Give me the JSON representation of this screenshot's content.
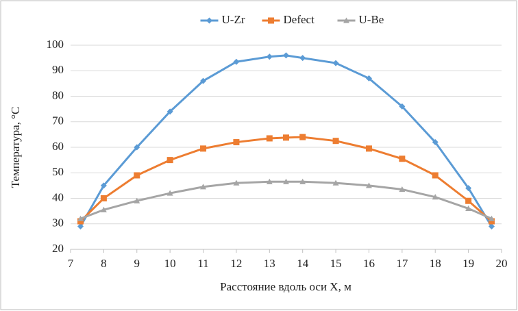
{
  "chart_data": {
    "type": "line",
    "x_label": "Расстояние вдоль оси X, м",
    "y_label": "Температура, °С",
    "x": [
      7.3,
      8,
      9,
      10,
      11,
      12,
      13,
      13.5,
      14,
      15,
      16,
      17,
      18,
      19,
      19.7
    ],
    "series": [
      {
        "name": "U-Zr",
        "color": "#5b9bd5",
        "marker": "diamond",
        "values": [
          29,
          45,
          60,
          74,
          86,
          93.5,
          95.5,
          96,
          95,
          93,
          87,
          76,
          62,
          44,
          29
        ]
      },
      {
        "name": "Defect",
        "color": "#ed7d31",
        "marker": "square",
        "values": [
          31,
          40,
          49,
          55,
          59.5,
          62,
          63.5,
          63.8,
          64,
          62.5,
          59.5,
          55.5,
          49,
          39,
          31
        ]
      },
      {
        "name": "U-Be",
        "color": "#a5a5a5",
        "marker": "triangle",
        "values": [
          32,
          35.5,
          39,
          42,
          44.5,
          46,
          46.5,
          46.5,
          46.5,
          46,
          45,
          43.5,
          40.5,
          36,
          32
        ]
      }
    ],
    "xlim": [
      7,
      20
    ],
    "xticks": [
      7,
      8,
      9,
      10,
      11,
      12,
      13,
      14,
      15,
      16,
      17,
      18,
      19,
      20
    ],
    "ylim": [
      20,
      100
    ],
    "yticks": [
      20,
      30,
      40,
      50,
      60,
      70,
      80,
      90,
      100
    ],
    "grid": true,
    "legend": "top"
  }
}
